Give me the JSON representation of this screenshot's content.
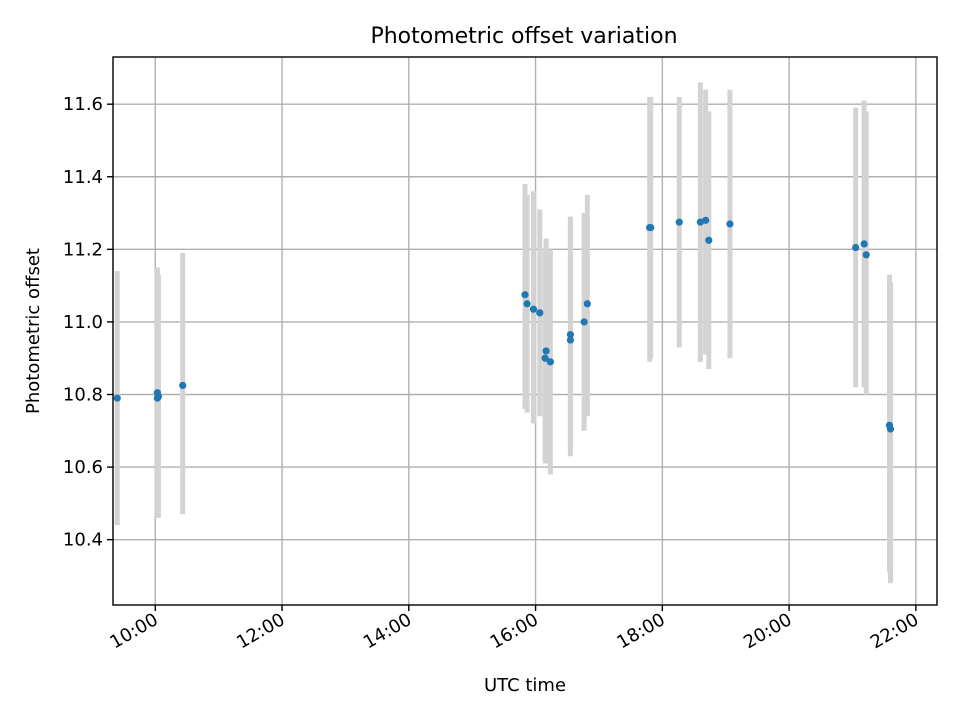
{
  "chart_data": {
    "type": "scatter",
    "title": "Photometric offset variation",
    "xlabel": "UTC time",
    "ylabel": "Photometric offset",
    "grid": true,
    "xlim": [
      "09:20",
      "22:20"
    ],
    "ylim": [
      10.22,
      11.73
    ],
    "x_ticks": [
      "10:00",
      "12:00",
      "14:00",
      "16:00",
      "18:00",
      "20:00",
      "22:00"
    ],
    "y_ticks": [
      10.4,
      10.6,
      10.8,
      11.0,
      11.2,
      11.4,
      11.6
    ],
    "point_color": "#1f77b4",
    "errorbar_color": "#d3d3d3",
    "points": [
      {
        "x": "09:24",
        "y": 10.79,
        "low": 10.44,
        "high": 11.14
      },
      {
        "x": "10:02",
        "y": 10.805,
        "low": 10.46,
        "high": 11.15
      },
      {
        "x": "10:02",
        "y": 10.79,
        "low": 10.47,
        "high": 11.14
      },
      {
        "x": "10:03",
        "y": 10.795,
        "low": 10.46,
        "high": 11.13
      },
      {
        "x": "10:26",
        "y": 10.825,
        "low": 10.47,
        "high": 11.19
      },
      {
        "x": "15:50",
        "y": 11.075,
        "low": 10.76,
        "high": 11.38
      },
      {
        "x": "15:52",
        "y": 11.05,
        "low": 10.75,
        "high": 11.35
      },
      {
        "x": "15:58",
        "y": 11.035,
        "low": 10.72,
        "high": 11.36
      },
      {
        "x": "16:04",
        "y": 11.025,
        "low": 10.74,
        "high": 11.31
      },
      {
        "x": "16:09",
        "y": 10.9,
        "low": 10.61,
        "high": 11.2
      },
      {
        "x": "16:10",
        "y": 10.92,
        "low": 10.61,
        "high": 11.23
      },
      {
        "x": "16:14",
        "y": 10.89,
        "low": 10.58,
        "high": 11.2
      },
      {
        "x": "16:33",
        "y": 10.95,
        "low": 10.63,
        "high": 11.28
      },
      {
        "x": "16:33",
        "y": 10.965,
        "low": 10.65,
        "high": 11.29
      },
      {
        "x": "16:46",
        "y": 11.0,
        "low": 10.7,
        "high": 11.3
      },
      {
        "x": "16:49",
        "y": 11.05,
        "low": 10.74,
        "high": 11.35
      },
      {
        "x": "17:48",
        "y": 11.26,
        "low": 10.89,
        "high": 11.62
      },
      {
        "x": "17:49",
        "y": 11.26,
        "low": 10.9,
        "high": 11.62
      },
      {
        "x": "18:16",
        "y": 11.275,
        "low": 10.93,
        "high": 11.62
      },
      {
        "x": "18:36",
        "y": 11.275,
        "low": 10.89,
        "high": 11.66
      },
      {
        "x": "18:41",
        "y": 11.28,
        "low": 10.91,
        "high": 11.64
      },
      {
        "x": "18:44",
        "y": 11.225,
        "low": 10.87,
        "high": 11.58
      },
      {
        "x": "19:04",
        "y": 11.27,
        "low": 10.9,
        "high": 11.64
      },
      {
        "x": "21:03",
        "y": 11.205,
        "low": 10.82,
        "high": 11.59
      },
      {
        "x": "21:11",
        "y": 11.215,
        "low": 10.82,
        "high": 11.61
      },
      {
        "x": "21:13",
        "y": 11.185,
        "low": 10.8,
        "high": 11.58
      },
      {
        "x": "21:35",
        "y": 10.715,
        "low": 10.31,
        "high": 11.13
      },
      {
        "x": "21:36",
        "y": 10.705,
        "low": 10.28,
        "high": 11.11
      }
    ]
  }
}
